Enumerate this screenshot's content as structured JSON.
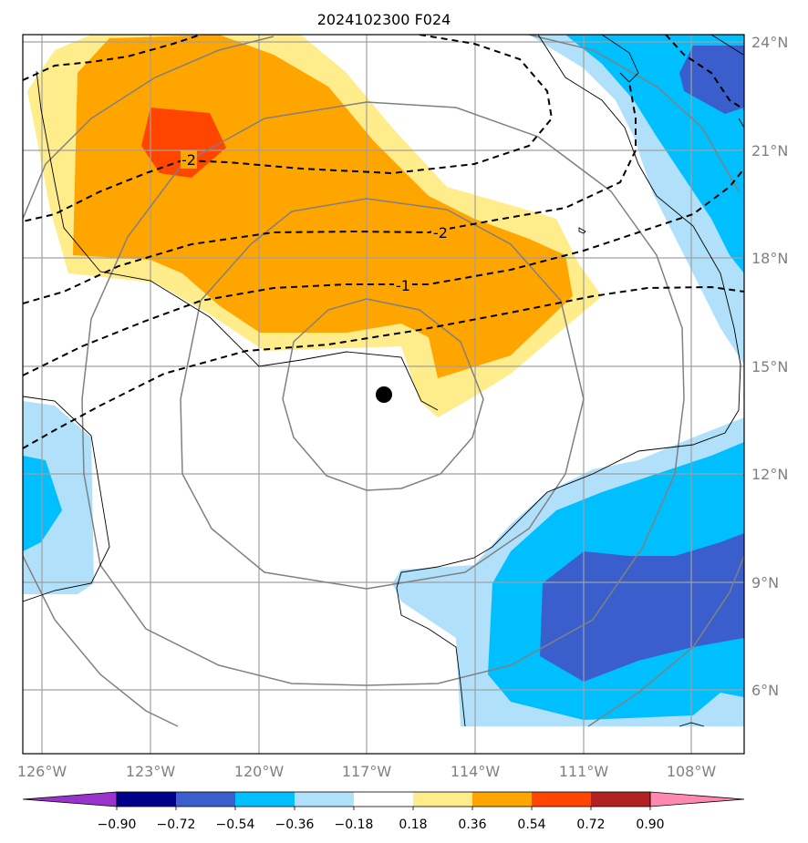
{
  "title": "2024102300 F024",
  "axes": {
    "lat_labels": [
      "24°N",
      "21°N",
      "18°N",
      "15°N",
      "12°N",
      "9°N",
      "6°N"
    ],
    "lon_labels": [
      "126°W",
      "123°W",
      "120°W",
      "117°W",
      "114°W",
      "111°W",
      "108°W"
    ]
  },
  "contour_labels": [
    "-2",
    "-2",
    "-1"
  ],
  "colorbar": {
    "labels": [
      "−0.90",
      "−0.72",
      "−0.54",
      "−0.36",
      "−0.18",
      "0.18",
      "0.36",
      "0.54",
      "0.72",
      "0.90"
    ],
    "colors": [
      "#9933cc",
      "#00008b",
      "#3a5fcd",
      "#00bfff",
      "#b0e0fa",
      "#ffffff",
      "#ffec8b",
      "#ffa500",
      "#ff4500",
      "#b22222",
      "#ff88b0"
    ]
  },
  "fill_colors": {
    "light_yellow": "#ffec8b",
    "orange": "#ffa500",
    "red_orange": "#ff4500",
    "light_blue": "#b0e0fa",
    "sky_blue": "#00bfff",
    "royal_blue": "#3a5fcd"
  },
  "storm_center_marker": "filled-black-dot"
}
